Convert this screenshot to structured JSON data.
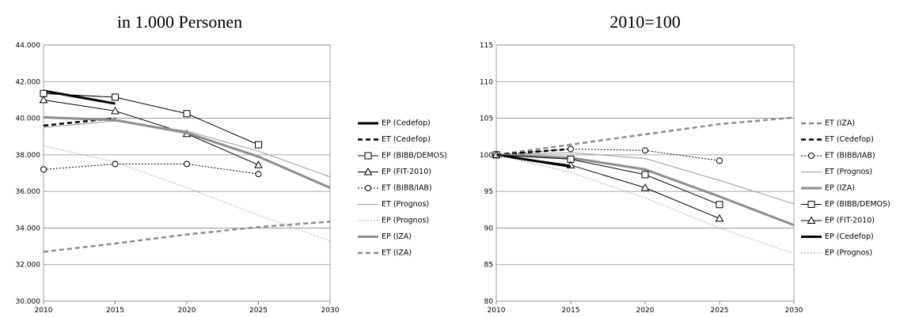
{
  "chart_data": [
    {
      "type": "line",
      "title": "in 1.000 Personen",
      "x": [
        2010,
        2015,
        2020,
        2025,
        2030
      ],
      "xlim": [
        2010,
        2030
      ],
      "xticks": [
        2010,
        2015,
        2020,
        2025,
        2030
      ],
      "ylim": [
        30000,
        44000
      ],
      "yticks": [
        {
          "value": 30000,
          "label": "30.000"
        },
        {
          "value": 32000,
          "label": "32.000"
        },
        {
          "value": 34000,
          "label": "34.000"
        },
        {
          "value": 36000,
          "label": "36.000"
        },
        {
          "value": 38000,
          "label": "38.000"
        },
        {
          "value": 40000,
          "label": "40.000"
        },
        {
          "value": 42000,
          "label": "42.000"
        },
        {
          "value": 44000,
          "label": "44.000"
        }
      ],
      "grid": true,
      "legend": "right",
      "series": [
        {
          "name": "EP (Cedefop)",
          "color": "#000000",
          "width": 3,
          "dash": "solid",
          "marker": "none",
          "values": [
            41500,
            40800,
            null,
            null,
            null
          ]
        },
        {
          "name": "ET (Cedefop)",
          "color": "#000000",
          "width": 2.5,
          "dash": "dashed",
          "marker": "none",
          "values": [
            39600,
            40000,
            null,
            null,
            null
          ]
        },
        {
          "name": "EP (BIBB/DEMOS)",
          "color": "#000000",
          "width": 1,
          "dash": "solid",
          "marker": "square",
          "values": [
            41350,
            41150,
            40250,
            38550,
            null
          ]
        },
        {
          "name": "EP (FIT-2010)",
          "color": "#000000",
          "width": 1,
          "dash": "solid",
          "marker": "triangle",
          "values": [
            41000,
            40400,
            39150,
            37450,
            null
          ]
        },
        {
          "name": "ET (BIBB/IAB)",
          "color": "#000000",
          "width": 1,
          "dash": "dotted",
          "marker": "circle",
          "values": [
            37200,
            37500,
            37500,
            36950,
            null
          ]
        },
        {
          "name": "ET (Prognos)",
          "color": "#a6a6a6",
          "width": 1.2,
          "dash": "solid",
          "marker": "none",
          "values": [
            39500,
            39850,
            39300,
            38200,
            36800
          ]
        },
        {
          "name": "EP (Prognos)",
          "color": "#a6a6a6",
          "width": 1,
          "dash": "dotted",
          "marker": "none",
          "values": [
            38500,
            37600,
            36200,
            34700,
            33300
          ]
        },
        {
          "name": "EP (IZA)",
          "color": "#8c8c8c",
          "width": 3,
          "dash": "solid",
          "marker": "none",
          "values": [
            40050,
            39900,
            39200,
            37900,
            36200
          ]
        },
        {
          "name": "ET (IZA)",
          "color": "#8c8c8c",
          "width": 2.5,
          "dash": "dashed",
          "marker": "none",
          "values": [
            32700,
            33150,
            33650,
            34050,
            34350
          ]
        }
      ]
    },
    {
      "type": "line",
      "title": "2010=100",
      "x": [
        2010,
        2015,
        2020,
        2025,
        2030
      ],
      "xlim": [
        2010,
        2030
      ],
      "xticks": [
        2010,
        2015,
        2020,
        2025,
        2030
      ],
      "ylim": [
        80,
        115
      ],
      "yticks": [
        80,
        85,
        90,
        95,
        100,
        105,
        110,
        115
      ],
      "grid": true,
      "legend": "right",
      "series": [
        {
          "name": "ET (IZA)",
          "color": "#8c8c8c",
          "width": 2.5,
          "dash": "dashed",
          "marker": "none",
          "values": [
            100,
            101.4,
            102.8,
            104.2,
            105.1
          ]
        },
        {
          "name": "ET (Cedefop)",
          "color": "#000000",
          "width": 2.5,
          "dash": "dashed",
          "marker": "none",
          "values": [
            100,
            100.8,
            null,
            null,
            null
          ]
        },
        {
          "name": "ET (BIBB/IAB)",
          "color": "#000000",
          "width": 1,
          "dash": "dotted",
          "marker": "circle",
          "values": [
            100,
            100.8,
            100.6,
            99.2,
            null
          ]
        },
        {
          "name": "ET (Prognos)",
          "color": "#a6a6a6",
          "width": 1.2,
          "dash": "solid",
          "marker": "none",
          "values": [
            100,
            100.3,
            99.5,
            96.5,
            93.3
          ]
        },
        {
          "name": "EP (IZA)",
          "color": "#8c8c8c",
          "width": 3,
          "dash": "solid",
          "marker": "none",
          "values": [
            100,
            99.6,
            98,
            94.3,
            90.4
          ]
        },
        {
          "name": "EP (BIBB/DEMOS)",
          "color": "#000000",
          "width": 1,
          "dash": "solid",
          "marker": "square",
          "values": [
            100,
            99.4,
            97.3,
            93.2,
            null
          ]
        },
        {
          "name": "EP (FIT-2010)",
          "color": "#000000",
          "width": 1,
          "dash": "solid",
          "marker": "triangle",
          "values": [
            100,
            98.6,
            95.5,
            91.3,
            null
          ]
        },
        {
          "name": "EP (Cedefop)",
          "color": "#000000",
          "width": 3,
          "dash": "solid",
          "marker": "none",
          "values": [
            100,
            98.4,
            null,
            null,
            null
          ]
        },
        {
          "name": "EP (Prognos)",
          "color": "#a6a6a6",
          "width": 1,
          "dash": "dotted",
          "marker": "none",
          "values": [
            100,
            97.6,
            94.1,
            90,
            86.5
          ]
        }
      ]
    }
  ]
}
